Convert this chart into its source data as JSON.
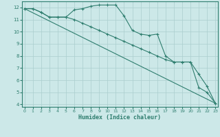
{
  "xlabel": "Humidex (Indice chaleur)",
  "ylabel": "",
  "bg_color": "#cce8e8",
  "line_color": "#2e7d6e",
  "grid_color": "#aacece",
  "series1_x": [
    0,
    1,
    2,
    3,
    4,
    5,
    6,
    7,
    8,
    9,
    10,
    11,
    12,
    13,
    14,
    15,
    16,
    17,
    18,
    19,
    20,
    21,
    22,
    23
  ],
  "series1_y": [
    11.9,
    11.9,
    11.6,
    11.2,
    11.2,
    11.2,
    11.8,
    11.9,
    12.1,
    12.2,
    12.2,
    12.2,
    11.3,
    10.1,
    9.8,
    9.7,
    9.8,
    8.0,
    7.5,
    7.5,
    7.5,
    5.4,
    5.0,
    4.1
  ],
  "series2_x": [
    0,
    1,
    2,
    3,
    4,
    5,
    6,
    7,
    8,
    9,
    10,
    11,
    12,
    13,
    14,
    15,
    16,
    17,
    18,
    19,
    20,
    21,
    22,
    23
  ],
  "series2_y": [
    11.9,
    11.9,
    11.6,
    11.2,
    11.2,
    11.2,
    11.0,
    10.7,
    10.4,
    10.1,
    9.8,
    9.5,
    9.2,
    8.9,
    8.6,
    8.3,
    8.0,
    7.7,
    7.5,
    7.5,
    7.5,
    6.5,
    5.5,
    4.1
  ],
  "series3_x": [
    0,
    23
  ],
  "series3_y": [
    11.9,
    4.1
  ],
  "xlim": [
    -0.3,
    23.3
  ],
  "ylim": [
    3.8,
    12.5
  ],
  "yticks": [
    4,
    5,
    6,
    7,
    8,
    9,
    10,
    11,
    12
  ],
  "xticks": [
    0,
    1,
    2,
    3,
    4,
    5,
    6,
    7,
    8,
    9,
    10,
    11,
    12,
    13,
    14,
    15,
    16,
    17,
    18,
    19,
    20,
    21,
    22,
    23
  ]
}
